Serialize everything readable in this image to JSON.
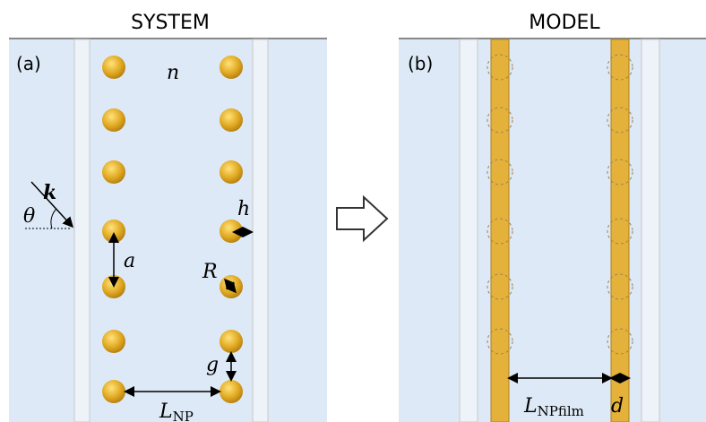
{
  "headers": {
    "system": "SYSTEM",
    "model": "MODEL"
  },
  "panels": {
    "a": "(a)",
    "b": "(b)"
  },
  "labels": {
    "n": "n",
    "k": "k",
    "theta": "θ",
    "h": "h",
    "a": "a",
    "R": "R",
    "g": "g",
    "l_np": {
      "base": "L",
      "sub": "NP"
    },
    "l_npfilm": {
      "base": "L",
      "sub": "NPfilm"
    },
    "d": "d"
  }
}
